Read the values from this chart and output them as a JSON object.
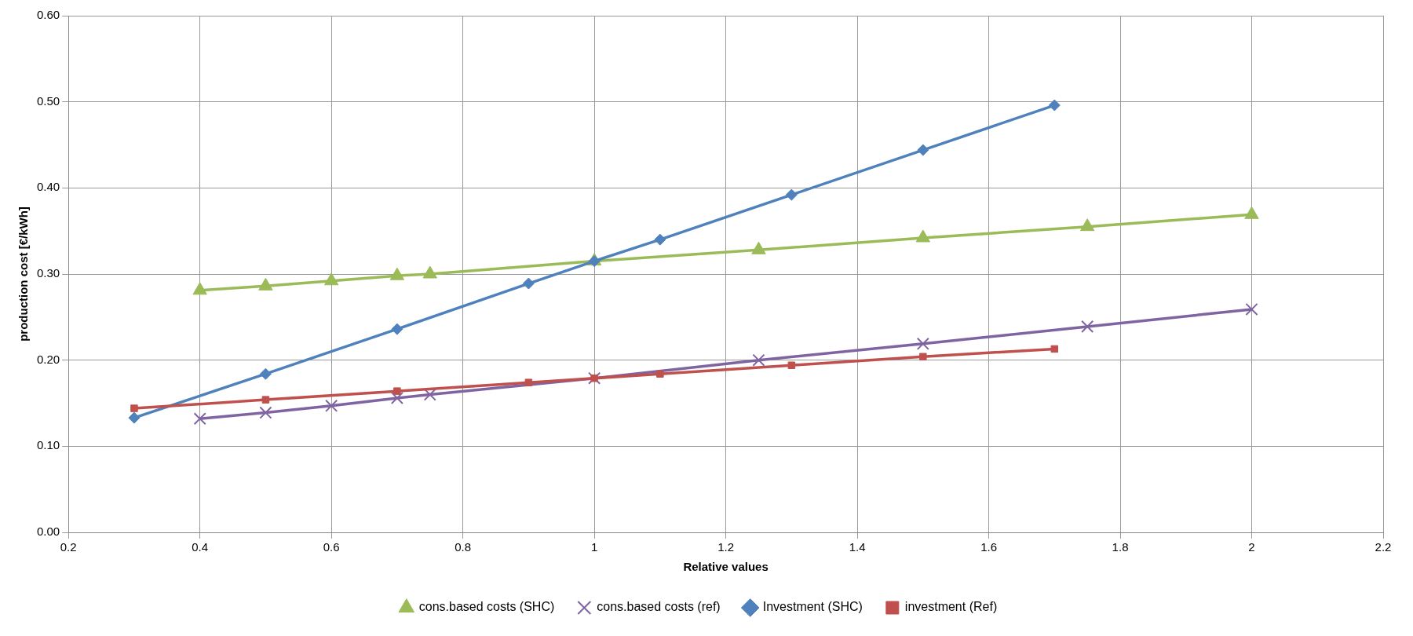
{
  "chart_data": {
    "type": "line",
    "xlabel": "Relative values",
    "ylabel": "production cost [€/kWh]",
    "xlim": [
      0.2,
      2.2
    ],
    "xticks": [
      0.2,
      0.4,
      0.6,
      0.8,
      1,
      1.2,
      1.4,
      1.6,
      1.8,
      2,
      2.2
    ],
    "ylim": [
      0,
      0.6
    ],
    "yticks": [
      {
        "value": 0,
        "label": "0.00"
      },
      {
        "value": 0.1,
        "label": "0.10"
      },
      {
        "value": 0.2,
        "label": "0.20"
      },
      {
        "value": 0.3,
        "label": "0.30"
      },
      {
        "value": 0.4,
        "label": "0.40"
      },
      {
        "value": 0.5,
        "label": "0.50"
      },
      {
        "value": 0.6,
        "label": "0.60"
      }
    ],
    "grid": true,
    "legend": "bottom",
    "line_style": "solid",
    "series": [
      {
        "name": "cons.based costs (SHC)",
        "color": "#9bbb59",
        "marker": "triangle",
        "x": [
          0.4,
          0.5,
          0.6,
          0.7,
          0.75,
          1,
          1.25,
          1.5,
          1.75,
          2
        ],
        "values": [
          0.281,
          0.286,
          0.292,
          0.298,
          0.3,
          0.315,
          0.328,
          0.342,
          0.355,
          0.369
        ]
      },
      {
        "name": "cons.based costs (ref)",
        "color": "#8064a2",
        "marker": "cross",
        "x": [
          0.4,
          0.5,
          0.6,
          0.7,
          0.75,
          1,
          1.25,
          1.5,
          1.75,
          2
        ],
        "values": [
          0.132,
          0.139,
          0.147,
          0.156,
          0.16,
          0.179,
          0.2,
          0.219,
          0.239,
          0.259
        ]
      },
      {
        "name": "Investment (SHC)",
        "color": "#4f81bd",
        "marker": "diamond",
        "x": [
          0.3,
          0.5,
          0.7,
          0.9,
          1,
          1.1,
          1.3,
          1.5,
          1.7
        ],
        "values": [
          0.133,
          0.184,
          0.236,
          0.289,
          0.315,
          0.34,
          0.392,
          0.444,
          0.496
        ]
      },
      {
        "name": "investment (Ref)",
        "color": "#c0504d",
        "marker": "square",
        "x": [
          0.3,
          0.5,
          0.7,
          0.9,
          1,
          1.1,
          1.3,
          1.5,
          1.7
        ],
        "values": [
          0.144,
          0.154,
          0.164,
          0.174,
          0.179,
          0.184,
          0.194,
          0.204,
          0.213
        ]
      }
    ]
  }
}
